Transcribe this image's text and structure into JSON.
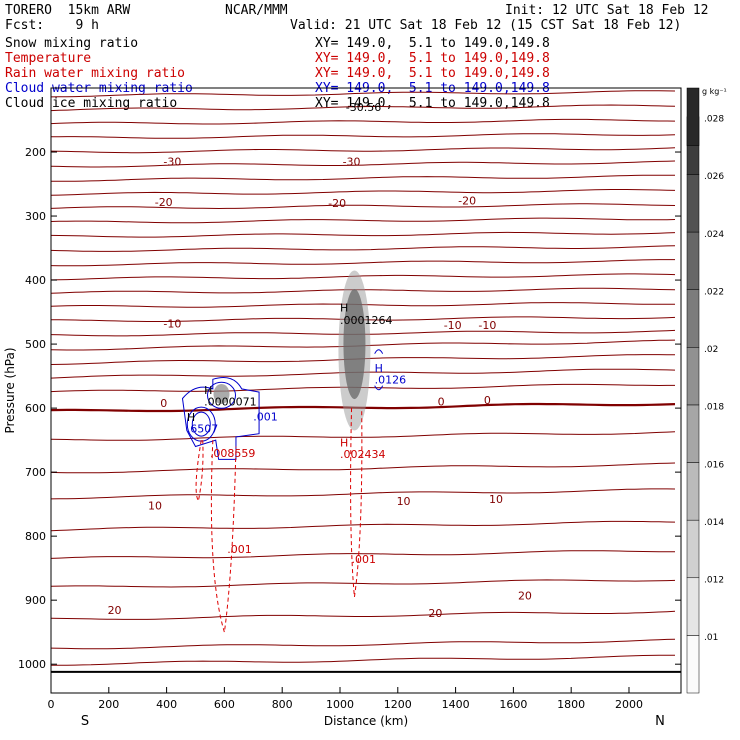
{
  "header": {
    "model": "TORERO  15km ARW",
    "center": "NCAR/MMM",
    "init": "Init: 12 UTC Sat 18 Feb 12",
    "fcst": "Fcst:    9 h",
    "valid": "Valid: 21 UTC Sat 18 Feb 12 (15 CST Sat 18 Feb 12)"
  },
  "fields": [
    {
      "name": "Snow mixing ratio",
      "xy": "XY= 149.0,  5.1 to 149.0,149.8",
      "color": "#000000"
    },
    {
      "name": "Temperature",
      "xy": "XY= 149.0,  5.1 to 149.0,149.8",
      "color": "#cc0000"
    },
    {
      "name": "Rain water mixing ratio",
      "xy": "XY= 149.0,  5.1 to 149.0,149.8",
      "color": "#cc0000"
    },
    {
      "name": "Cloud water mixing ratio",
      "xy": "XY= 149.0,  5.1 to 149.0,149.8",
      "color": "#0000cc"
    },
    {
      "name": "Cloud ice mixing ratio",
      "xy": "XY= 149.0,  5.1 to 149.0,149.8",
      "color": "#000000"
    }
  ],
  "chart_data": {
    "type": "contour",
    "title": "",
    "xlabel": "Distance (km)",
    "ylabel": "Pressure (hPa)",
    "xlim": [
      0,
      2180
    ],
    "ylim": [
      1045,
      100
    ],
    "xticks": [
      0,
      200,
      400,
      600,
      800,
      1000,
      1200,
      1400,
      1600,
      1800,
      2000
    ],
    "yticks": [
      200,
      300,
      400,
      500,
      600,
      700,
      800,
      900,
      1000
    ],
    "x_end_labels": {
      "left": "S",
      "right": "N"
    },
    "colorbar": {
      "unit": "g kg⁻¹",
      "ticks": [
        ".01",
        ".012",
        ".014",
        ".016",
        ".018",
        ".02",
        ".022",
        ".024",
        ".026",
        ".028"
      ]
    },
    "temperature_labels": [
      {
        "text": "-30",
        "x": 420,
        "p": 215
      },
      {
        "text": "-30",
        "x": 1040,
        "p": 215
      },
      {
        "text": "-20",
        "x": 390,
        "p": 278
      },
      {
        "text": "-20",
        "x": 990,
        "p": 280
      },
      {
        "text": "-20",
        "x": 1440,
        "p": 276
      },
      {
        "text": "-10",
        "x": 420,
        "p": 468
      },
      {
        "text": "-10",
        "x": 1390,
        "p": 470
      },
      {
        "text": "-10",
        "x": 1510,
        "p": 470
      },
      {
        "text": "0",
        "x": 390,
        "p": 592
      },
      {
        "text": "0",
        "x": 1350,
        "p": 590
      },
      {
        "text": "0",
        "x": 1510,
        "p": 587
      },
      {
        "text": "10",
        "x": 360,
        "p": 752
      },
      {
        "text": "10",
        "x": 1220,
        "p": 745
      },
      {
        "text": "10",
        "x": 1540,
        "p": 742
      },
      {
        "text": "20",
        "x": 220,
        "p": 915
      },
      {
        "text": "20",
        "x": 1330,
        "p": 920
      },
      {
        "text": "20",
        "x": 1640,
        "p": 893
      }
    ],
    "annotations": [
      {
        "text": "H",
        "x": 1000,
        "p": 443,
        "color": "#000000"
      },
      {
        "text": ".0001264",
        "x": 1000,
        "p": 462,
        "color": "#000000"
      },
      {
        "text": "H",
        "x": 530,
        "p": 572,
        "color": "#000000"
      },
      {
        "text": ".0000071",
        "x": 530,
        "p": 590,
        "color": "#000000"
      },
      {
        "text": "H",
        "x": 470,
        "p": 614,
        "color": "#000000"
      },
      {
        "text": ".6507",
        "x": 470,
        "p": 632,
        "color": "#0000cc"
      },
      {
        "text": ".001",
        "x": 700,
        "p": 613,
        "color": "#0000cc"
      },
      {
        "text": "H",
        "x": 1120,
        "p": 537,
        "color": "#0000cc"
      },
      {
        "text": ".0126",
        "x": 1120,
        "p": 555,
        "color": "#0000cc"
      },
      {
        "text": ".008559",
        "x": 550,
        "p": 670,
        "color": "#cc0000"
      },
      {
        "text": "H",
        "x": 1000,
        "p": 654,
        "color": "#cc0000"
      },
      {
        "text": ".002434",
        "x": 1000,
        "p": 672,
        "color": "#cc0000"
      },
      {
        "text": ".001",
        "x": 610,
        "p": 820,
        "color": "#cc0000"
      },
      {
        "text": ".001",
        "x": 1040,
        "p": 836,
        "color": "#cc0000"
      },
      {
        "text": "-30.56",
        "x": 1020,
        "p": 130,
        "color": "#000000"
      }
    ]
  }
}
